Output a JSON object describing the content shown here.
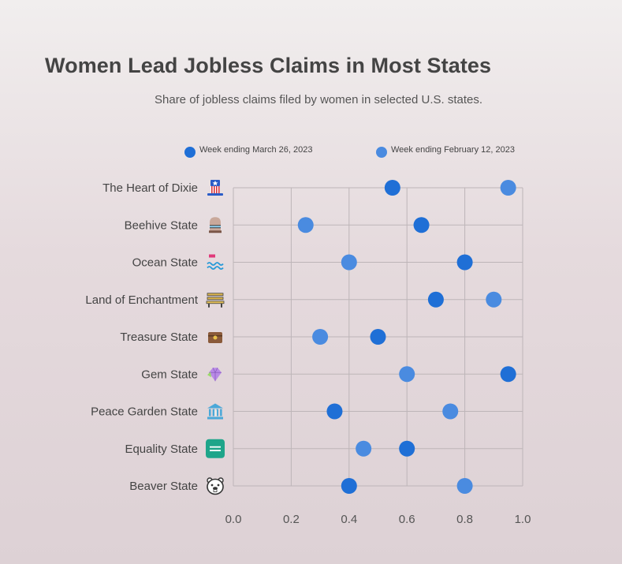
{
  "chart_data": {
    "type": "scatter",
    "title": "Women Lead Jobless Claims in Most States",
    "subtitle": "Share of jobless claims filed by women in selected U.S. states.",
    "xlabel": "",
    "ylabel": "",
    "xlim": [
      0,
      1
    ],
    "x_ticks": [
      "0.0",
      "0.2",
      "0.4",
      "0.6",
      "0.8",
      "1.0"
    ],
    "grid": true,
    "legend_position": "top",
    "categories": [
      "The Heart of Dixie",
      "Beehive State",
      "Ocean State",
      "Land of Enchantment",
      "Treasure State",
      "Gem State",
      "Peace Garden State",
      "Equality State",
      "Beaver State"
    ],
    "category_icons": [
      "uncle-sam-hat-icon",
      "beehive-icon",
      "ocean-waves-icon",
      "bench-icon",
      "treasure-chest-icon",
      "gem-icon",
      "classical-building-icon",
      "equals-sign-icon",
      "beaver-icon"
    ],
    "series": [
      {
        "name": "Week ending March 26, 2023",
        "color": "#1f6fd6",
        "values": [
          0.55,
          0.65,
          0.8,
          0.7,
          0.5,
          0.95,
          0.35,
          0.6,
          0.4
        ]
      },
      {
        "name": "Week ending February 12, 2023",
        "color": "#4a8be0",
        "values": [
          0.95,
          0.25,
          0.4,
          0.9,
          0.3,
          0.6,
          0.75,
          0.45,
          0.8
        ]
      }
    ]
  }
}
